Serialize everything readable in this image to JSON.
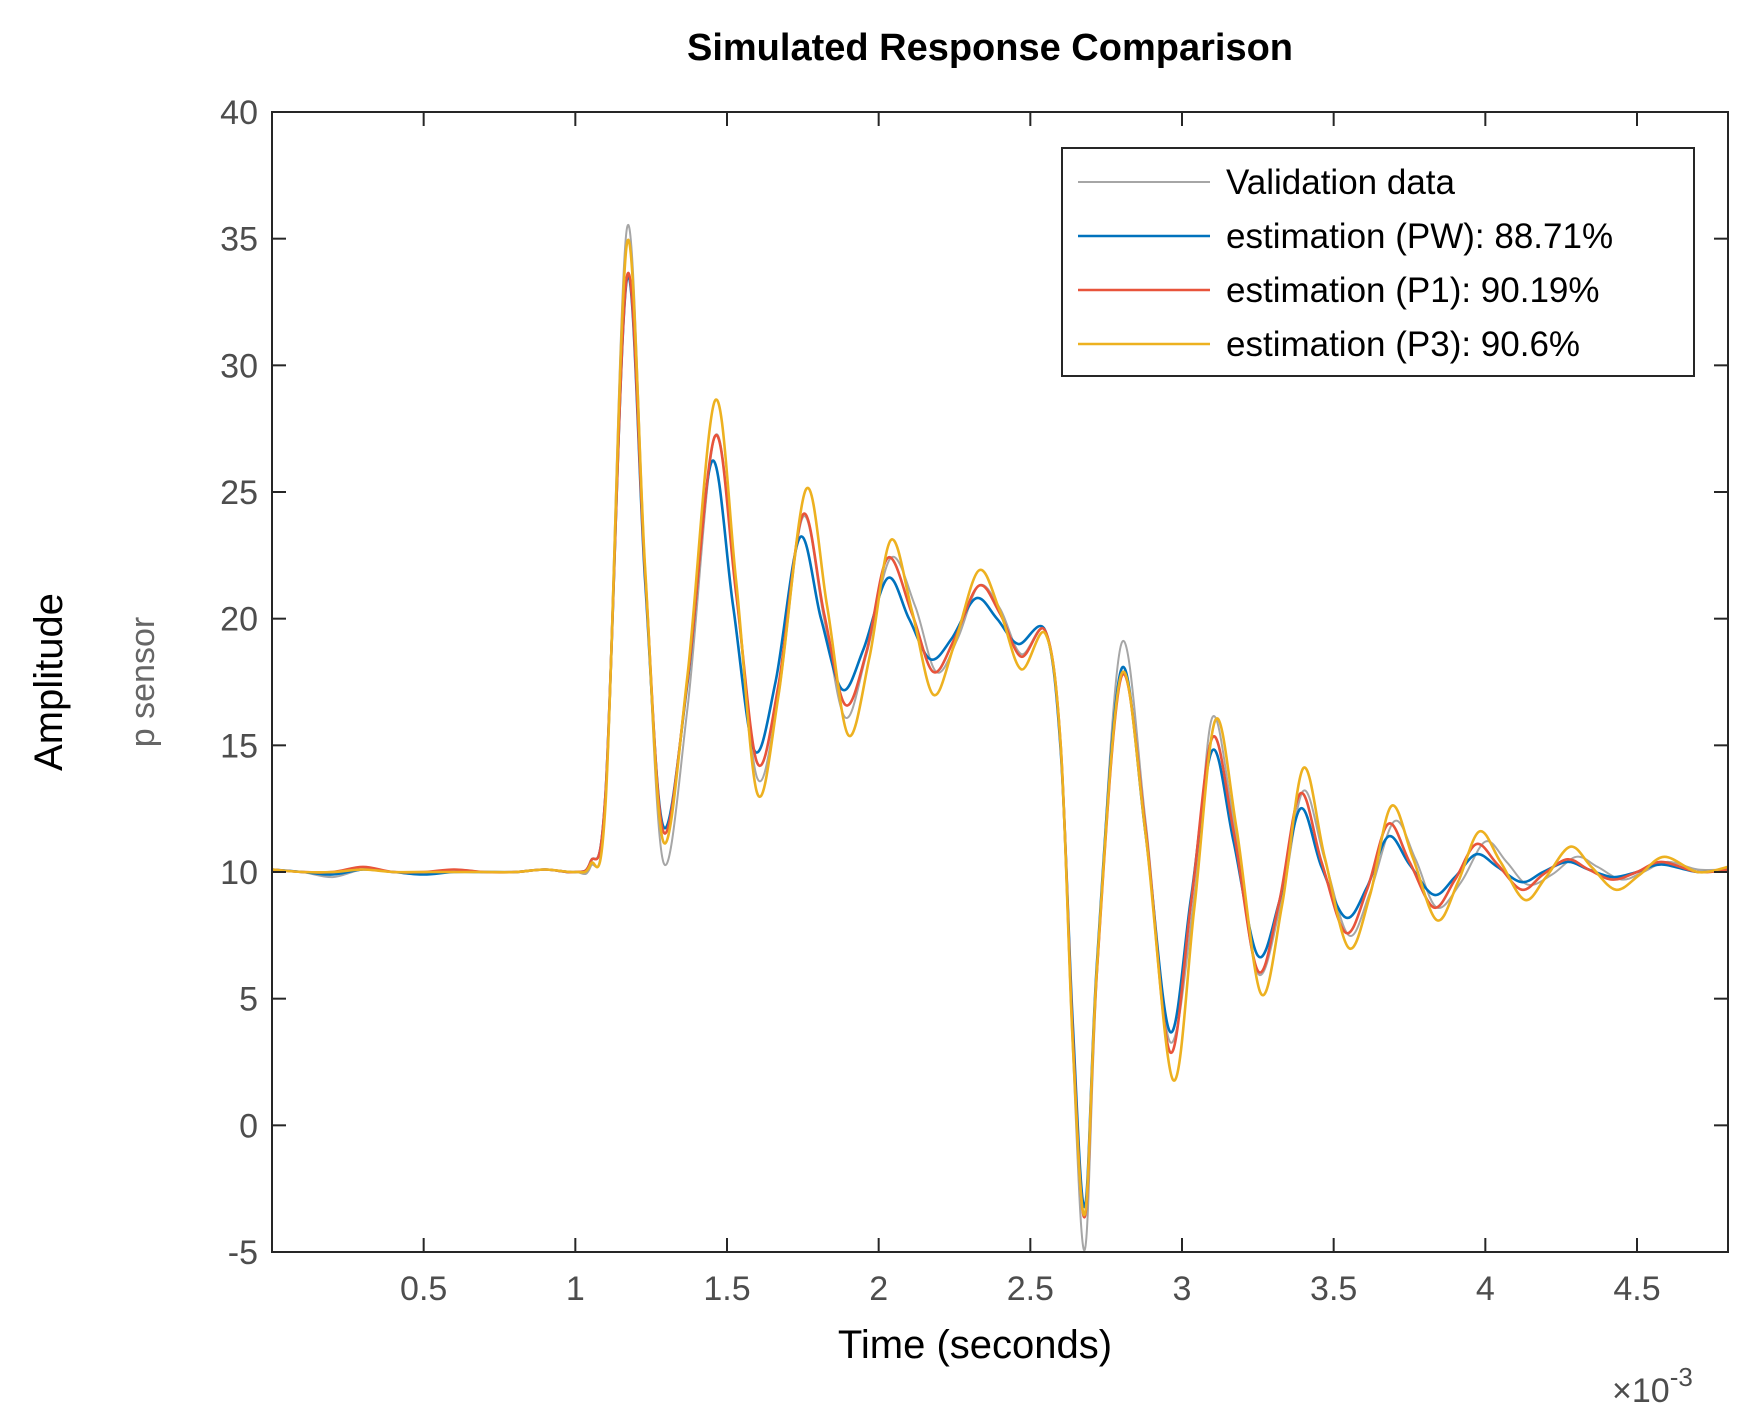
{
  "chart_data": {
    "type": "line",
    "title": "Simulated Response Comparison",
    "xlabel": "Time (seconds)",
    "ylabel": "Amplitude",
    "ylabel_sub": "p sensor",
    "x_multiplier_label": "×10",
    "x_multiplier_exp": "-3",
    "xlim": [
      0,
      4.8
    ],
    "ylim": [
      -5,
      40
    ],
    "xticks": [
      0.5,
      1,
      1.5,
      2,
      2.5,
      3,
      3.5,
      4,
      4.5
    ],
    "yticks": [
      -5,
      0,
      5,
      10,
      15,
      20,
      25,
      30,
      35,
      40
    ],
    "legend_position": "top-right",
    "series": [
      {
        "name": "Validation data",
        "color": "#a6a6a6",
        "x": [
          0,
          0.1,
          0.2,
          0.3,
          0.4,
          0.5,
          0.6,
          0.7,
          0.8,
          0.9,
          1.0,
          1.05,
          1.1,
          1.17,
          1.23,
          1.29,
          1.37,
          1.46,
          1.53,
          1.6,
          1.67,
          1.75,
          1.82,
          1.89,
          1.96,
          2.04,
          2.12,
          2.19,
          2.26,
          2.33,
          2.4,
          2.47,
          2.55,
          2.6,
          2.64,
          2.68,
          2.72,
          2.8,
          2.88,
          2.96,
          3.04,
          3.1,
          3.17,
          3.25,
          3.33,
          3.4,
          3.47,
          3.55,
          3.62,
          3.7,
          3.77,
          3.84,
          3.92,
          4.0,
          4.07,
          4.14,
          4.22,
          4.3,
          4.37,
          4.45,
          4.52,
          4.6,
          4.7,
          4.8
        ],
        "y": [
          10.1,
          10.0,
          9.8,
          10.1,
          10.0,
          9.9,
          10.1,
          10.0,
          10.0,
          10.1,
          10.0,
          10.2,
          13.0,
          35.4,
          22.0,
          10.4,
          16.5,
          27.2,
          21.0,
          13.7,
          17.0,
          24.0,
          20.0,
          16.1,
          18.6,
          22.4,
          20.5,
          17.9,
          19.2,
          21.3,
          20.4,
          18.6,
          19.5,
          15.0,
          3.0,
          -4.9,
          6.0,
          19.0,
          12.0,
          3.3,
          9.0,
          16.1,
          12.0,
          6.0,
          9.0,
          13.2,
          10.5,
          7.5,
          9.2,
          12.0,
          10.5,
          8.6,
          9.6,
          11.2,
          10.4,
          9.5,
          9.9,
          10.6,
          10.2,
          9.7,
          10.0,
          10.4,
          10.1,
          10.1
        ]
      },
      {
        "name": "estimation (PW): 88.71%",
        "color": "#0072bd",
        "x": [
          0,
          0.1,
          0.2,
          0.3,
          0.4,
          0.5,
          0.6,
          0.7,
          0.8,
          0.9,
          1.0,
          1.05,
          1.1,
          1.17,
          1.23,
          1.29,
          1.37,
          1.45,
          1.52,
          1.59,
          1.66,
          1.74,
          1.81,
          1.88,
          1.95,
          2.03,
          2.1,
          2.17,
          2.24,
          2.32,
          2.39,
          2.46,
          2.55,
          2.6,
          2.64,
          2.68,
          2.72,
          2.8,
          2.88,
          2.96,
          3.03,
          3.1,
          3.17,
          3.25,
          3.32,
          3.39,
          3.46,
          3.54,
          3.61,
          3.68,
          3.75,
          3.83,
          3.9,
          3.97,
          4.04,
          4.12,
          4.19,
          4.27,
          4.34,
          4.42,
          4.5,
          4.58,
          4.7,
          4.8
        ],
        "y": [
          10.1,
          10.0,
          9.9,
          10.1,
          10.0,
          9.9,
          10.0,
          10.0,
          10.0,
          10.1,
          10.0,
          10.4,
          13.2,
          33.4,
          21.5,
          11.8,
          17.5,
          26.2,
          20.5,
          14.8,
          17.5,
          23.2,
          20.0,
          17.2,
          18.8,
          21.6,
          20.0,
          18.4,
          19.2,
          20.8,
          20.0,
          19.0,
          19.5,
          14.8,
          4.0,
          -3.2,
          6.5,
          18.0,
          11.5,
          3.7,
          9.0,
          14.8,
          11.2,
          6.7,
          8.8,
          12.5,
          10.2,
          8.2,
          9.4,
          11.4,
          10.3,
          9.1,
          9.8,
          10.7,
          10.2,
          9.6,
          10.0,
          10.4,
          10.1,
          9.8,
          10.0,
          10.3,
          10.0,
          10.1
        ]
      },
      {
        "name": "estimation (P1): 90.19%",
        "color": "#e8543b",
        "x": [
          0,
          0.1,
          0.2,
          0.3,
          0.4,
          0.5,
          0.6,
          0.7,
          0.8,
          0.9,
          1.0,
          1.05,
          1.1,
          1.17,
          1.23,
          1.29,
          1.37,
          1.46,
          1.53,
          1.6,
          1.67,
          1.75,
          1.82,
          1.89,
          1.96,
          2.03,
          2.11,
          2.18,
          2.25,
          2.33,
          2.4,
          2.47,
          2.55,
          2.6,
          2.64,
          2.68,
          2.72,
          2.8,
          2.88,
          2.96,
          3.03,
          3.1,
          3.17,
          3.25,
          3.32,
          3.39,
          3.46,
          3.54,
          3.61,
          3.68,
          3.75,
          3.83,
          3.9,
          3.97,
          4.04,
          4.12,
          4.19,
          4.27,
          4.34,
          4.42,
          4.5,
          4.58,
          4.7,
          4.8
        ],
        "y": [
          10.1,
          10.0,
          10.0,
          10.2,
          10.0,
          10.0,
          10.1,
          10.0,
          10.0,
          10.1,
          10.0,
          10.4,
          13.2,
          33.5,
          21.8,
          11.6,
          17.6,
          27.2,
          21.0,
          14.3,
          17.4,
          24.1,
          20.2,
          16.6,
          18.7,
          22.4,
          20.2,
          17.9,
          19.2,
          21.3,
          20.2,
          18.5,
          19.5,
          15.0,
          3.5,
          -3.6,
          6.2,
          17.7,
          11.7,
          2.9,
          8.8,
          15.3,
          11.6,
          6.1,
          8.8,
          13.1,
          10.4,
          7.6,
          9.3,
          11.9,
          10.4,
          8.6,
          9.7,
          11.1,
          10.3,
          9.3,
          9.9,
          10.5,
          10.1,
          9.7,
          10.0,
          10.4,
          10.0,
          10.1
        ]
      },
      {
        "name": "estimation (P3): 90.6%",
        "color": "#edb120",
        "x": [
          0,
          0.1,
          0.2,
          0.3,
          0.4,
          0.5,
          0.6,
          0.7,
          0.8,
          0.9,
          1.0,
          1.05,
          1.1,
          1.17,
          1.23,
          1.29,
          1.37,
          1.46,
          1.53,
          1.6,
          1.67,
          1.76,
          1.83,
          1.9,
          1.97,
          2.04,
          2.11,
          2.18,
          2.25,
          2.33,
          2.4,
          2.47,
          2.55,
          2.6,
          2.64,
          2.68,
          2.72,
          2.8,
          2.88,
          2.97,
          3.04,
          3.11,
          3.18,
          3.26,
          3.33,
          3.4,
          3.47,
          3.55,
          3.62,
          3.69,
          3.76,
          3.84,
          3.91,
          3.98,
          4.05,
          4.13,
          4.2,
          4.28,
          4.35,
          4.43,
          4.51,
          4.59,
          4.7,
          4.8
        ],
        "y": [
          10.1,
          10.0,
          10.0,
          10.1,
          10.0,
          10.0,
          10.0,
          10.0,
          10.0,
          10.1,
          10.0,
          10.3,
          12.8,
          34.8,
          22.0,
          11.2,
          17.8,
          28.6,
          21.5,
          13.1,
          17.0,
          25.1,
          20.5,
          15.4,
          18.5,
          23.1,
          20.3,
          17.0,
          19.0,
          21.9,
          20.3,
          18.0,
          19.4,
          15.0,
          3.2,
          -3.5,
          6.3,
          17.8,
          11.5,
          1.8,
          8.5,
          16.0,
          11.7,
          5.2,
          8.7,
          14.1,
          10.6,
          7.0,
          9.1,
          12.6,
          10.6,
          8.1,
          9.6,
          11.6,
          10.4,
          8.9,
          9.8,
          11.0,
          10.2,
          9.3,
          9.9,
          10.6,
          10.0,
          10.2
        ]
      }
    ]
  }
}
